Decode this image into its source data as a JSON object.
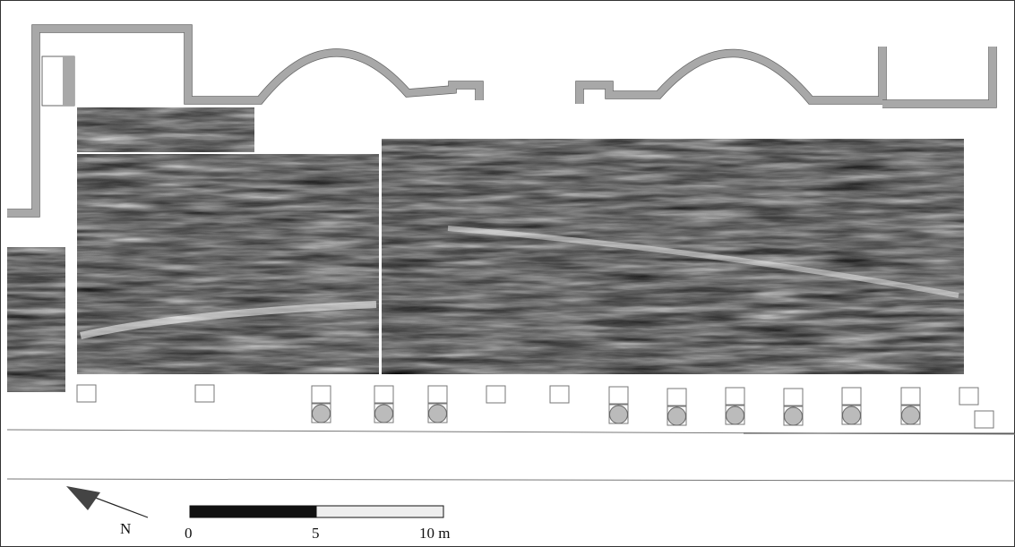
{
  "north_label": "N",
  "scale_bar": {
    "labels": [
      "0",
      "5",
      "10 m"
    ]
  }
}
